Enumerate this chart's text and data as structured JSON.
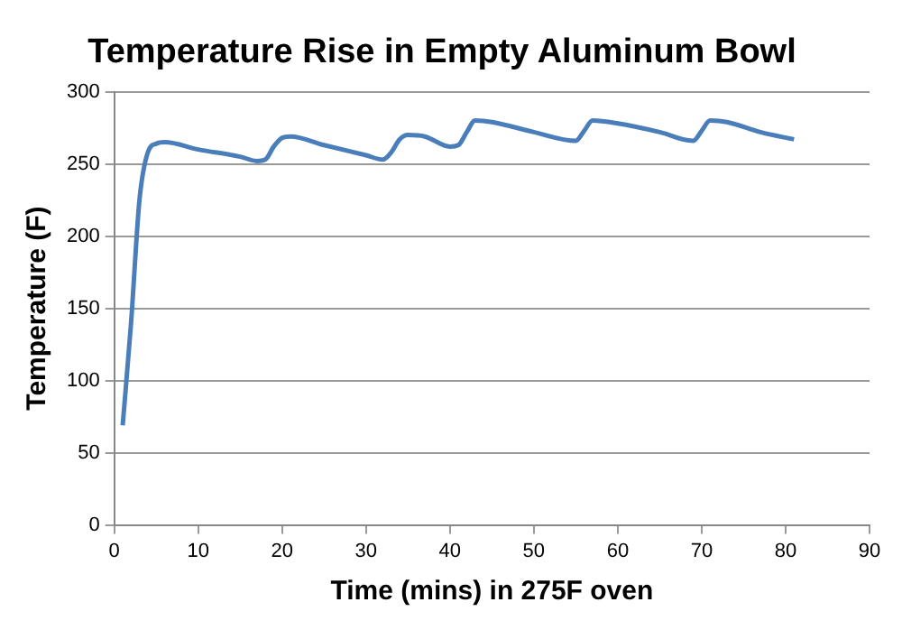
{
  "chart_data": {
    "type": "line",
    "title": "Temperature Rise in Empty Aluminum Bowl",
    "xlabel": "Time (mins) in 275F oven",
    "ylabel": "Temperature (F)",
    "x": [
      1,
      2,
      3,
      4,
      5,
      6,
      10,
      15,
      17,
      18,
      19,
      20,
      21,
      25,
      30,
      32,
      33,
      34,
      35,
      37,
      40,
      41,
      42,
      43,
      45,
      50,
      55,
      56,
      57,
      60,
      65,
      69,
      70,
      71,
      73,
      77,
      81
    ],
    "series": [
      {
        "color": "#4a7ebb",
        "values": [
          69,
          140,
          225,
          258,
          264,
          265,
          260,
          255,
          252,
          253,
          262,
          268,
          269,
          263,
          256,
          253,
          258,
          267,
          270,
          269,
          262,
          263,
          272,
          280,
          279,
          272,
          266,
          273,
          280,
          278,
          272,
          266,
          273,
          280,
          279,
          272,
          267
        ]
      }
    ],
    "xlim": [
      0,
      90
    ],
    "xticks": [
      0,
      10,
      20,
      30,
      40,
      50,
      60,
      70,
      80,
      90
    ],
    "ylim": [
      0,
      300
    ],
    "yticks": [
      0,
      50,
      100,
      150,
      200,
      250,
      300
    ],
    "grid": "y",
    "legend": false,
    "marker": "none",
    "line_style": "solid"
  }
}
